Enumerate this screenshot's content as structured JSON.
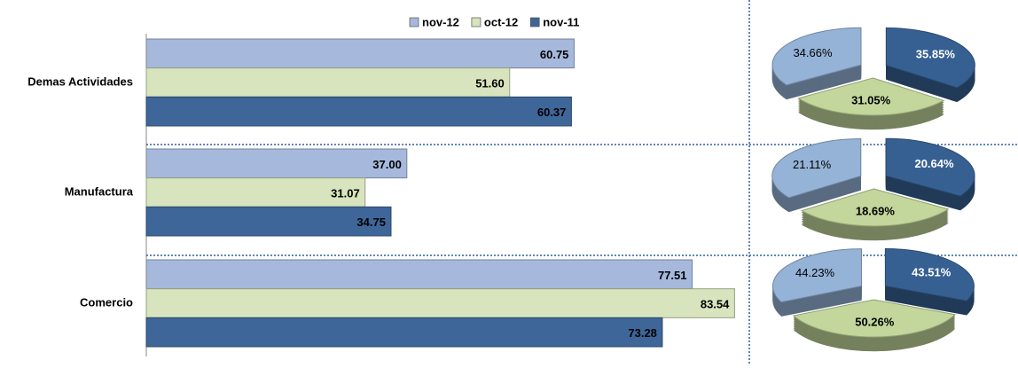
{
  "chart_data": [
    {
      "type": "hbar",
      "categories": [
        "Demas Actividades",
        "Manufactura",
        "Comercio"
      ],
      "series": [
        {
          "name": "nov-12",
          "color": "#a6b9dc",
          "values": [
            60.75,
            37,
            77.51
          ],
          "value_labels": [
            "60.75",
            "37.00",
            "77.51"
          ]
        },
        {
          "name": "oct-12",
          "color": "#d7e4bd",
          "values": [
            51.6,
            31.07,
            83.54
          ],
          "value_labels": [
            "51.60",
            "31.07",
            "83.54"
          ]
        },
        {
          "name": "nov-11",
          "color": "#3e6699",
          "values": [
            60.37,
            34.75,
            73.28
          ],
          "value_labels": [
            "60.37",
            "34.75",
            "73.28"
          ]
        }
      ],
      "xlim": [
        0,
        85
      ],
      "legend": "top"
    },
    {
      "type": "pie",
      "values": [
        34.66,
        31.05,
        35.85
      ],
      "value_labels": [
        "34.66%",
        "31.05%",
        "35.85%"
      ],
      "colors": [
        "#95b3d7",
        "#c3d69b",
        "#376092"
      ]
    },
    {
      "type": "pie",
      "values": [
        21.11,
        18.69,
        20.64
      ],
      "value_labels": [
        "21.11%",
        "18.69%",
        "20.64%"
      ],
      "colors": [
        "#95b3d7",
        "#c3d69b",
        "#376092"
      ]
    },
    {
      "type": "pie",
      "values": [
        44.23,
        50.26,
        43.51
      ],
      "value_labels": [
        "44.23%",
        "50.26%",
        "43.51%"
      ],
      "colors": [
        "#95b3d7",
        "#c3d69b",
        "#376092"
      ]
    }
  ]
}
